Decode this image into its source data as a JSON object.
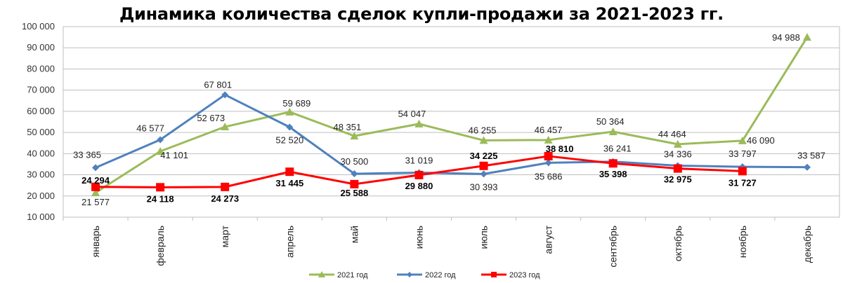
{
  "chart_data": {
    "type": "line",
    "title": "Динамика количества сделок купли-продажи за 2021-2023 гг.",
    "categories": [
      "январь",
      "февраль",
      "март",
      "апрель",
      "май",
      "июнь",
      "июль",
      "август",
      "сентябрь",
      "октябрь",
      "ноябрь",
      "декабрь"
    ],
    "ylim": [
      10000,
      100000
    ],
    "yticks": [
      "10 000",
      "20 000",
      "30 000",
      "40 000",
      "50 000",
      "60 000",
      "70 000",
      "80 000",
      "90 000",
      "100 000"
    ],
    "grid": true,
    "legend_position": "bottom",
    "series": [
      {
        "name": "2021 год",
        "color": "#9BBB59",
        "marker": "triangle",
        "values": [
          21577,
          41101,
          52673,
          59689,
          48351,
          54047,
          46255,
          46457,
          50364,
          44464,
          46090,
          94988
        ],
        "labels": [
          "21 577",
          "41 101",
          "52 673",
          "59 689",
          "48 351",
          "54 047",
          "46 255",
          "46 457",
          "50 364",
          "44 464",
          "46 090",
          "94 988"
        ]
      },
      {
        "name": "2022 год",
        "color": "#4F81BD",
        "marker": "diamond",
        "values": [
          33365,
          46577,
          67801,
          52520,
          30500,
          31019,
          30393,
          35686,
          36241,
          34336,
          33797,
          33587
        ],
        "labels": [
          "33 365",
          "46 577",
          "67 801",
          "52 520",
          "30 500",
          "31 019",
          "30 393",
          "35 686",
          "36 241",
          "34 336",
          "33 797",
          "33 587"
        ]
      },
      {
        "name": "2023 год",
        "color": "#FF0000",
        "marker": "square",
        "values": [
          24294,
          24118,
          24273,
          31445,
          25588,
          29880,
          34225,
          38810,
          35398,
          32975,
          31727,
          null
        ],
        "labels": [
          "24 294",
          "24 118",
          "24 273",
          "31 445",
          "25 588",
          "29 880",
          "34 225",
          "38 810",
          "35 398",
          "32 975",
          "31 727",
          ""
        ]
      }
    ]
  }
}
